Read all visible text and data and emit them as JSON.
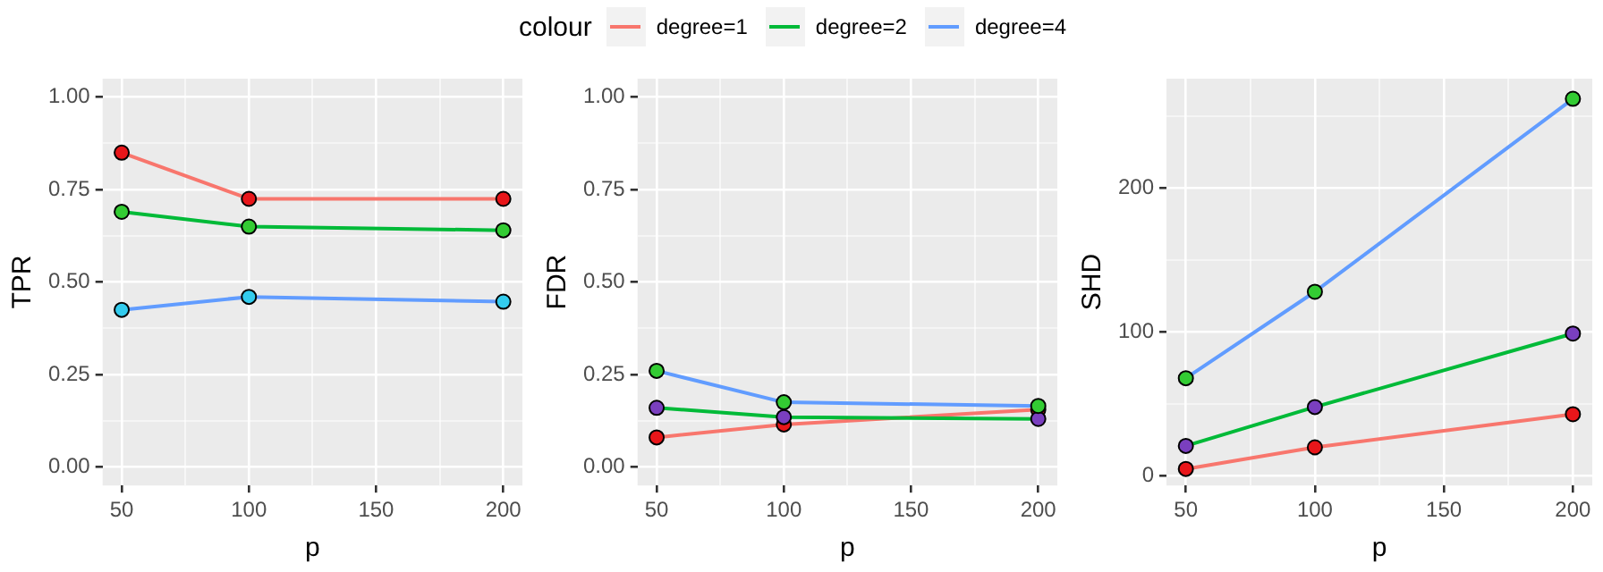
{
  "chart_data": [
    {
      "type": "line",
      "xlabel": "p",
      "ylabel": "TPR",
      "legend_title": "colour",
      "legend": "top",
      "grid": true,
      "marker": "circle",
      "line_style": "solid",
      "x": [
        50,
        100,
        200
      ],
      "xlim": [
        42.5,
        207.5
      ],
      "xticks": [
        50,
        {
          "value": 75,
          "label": null
        },
        100,
        {
          "value": 125,
          "label": null
        },
        150,
        {
          "value": 175,
          "label": null
        },
        200
      ],
      "ylim": [
        -0.05,
        1.05
      ],
      "yticks": [
        {
          "value": 0,
          "label": "0.00"
        },
        {
          "value": 0.125,
          "label": null
        },
        {
          "value": 0.25,
          "label": "0.25"
        },
        {
          "value": 0.375,
          "label": null
        },
        {
          "value": 0.5,
          "label": "0.50"
        },
        {
          "value": 0.625,
          "label": null
        },
        {
          "value": 0.75,
          "label": "0.75"
        },
        {
          "value": 0.875,
          "label": null
        },
        {
          "value": 1,
          "label": "1.00"
        }
      ],
      "series": [
        {
          "name": "degree=1",
          "color": "#f8766d",
          "colors": [
            "#e8161a",
            "#e8161a",
            "#e8161a"
          ],
          "values": [
            0.85,
            0.725,
            0.725
          ]
        },
        {
          "name": "degree=2",
          "color": "#00ba38",
          "colors": [
            "#33cc33",
            "#33cc33",
            "#33cc33"
          ],
          "values": [
            0.69,
            0.65,
            0.64
          ]
        },
        {
          "name": "degree=4",
          "color": "#619cff",
          "colors": [
            "#33ccee",
            "#33ccee",
            "#33ccee"
          ],
          "values": [
            0.425,
            0.46,
            0.447
          ]
        }
      ]
    },
    {
      "type": "line",
      "xlabel": "p",
      "ylabel": "FDR",
      "grid": true,
      "marker": "circle",
      "line_style": "solid",
      "x": [
        50,
        100,
        200
      ],
      "xlim": [
        42.5,
        207.5
      ],
      "xticks": [
        50,
        {
          "value": 75,
          "label": null
        },
        100,
        {
          "value": 125,
          "label": null
        },
        150,
        {
          "value": 175,
          "label": null
        },
        200
      ],
      "ylim": [
        -0.05,
        1.05
      ],
      "yticks": [
        {
          "value": 0,
          "label": "0.00"
        },
        {
          "value": 0.125,
          "label": null
        },
        {
          "value": 0.25,
          "label": "0.25"
        },
        {
          "value": 0.375,
          "label": null
        },
        {
          "value": 0.5,
          "label": "0.50"
        },
        {
          "value": 0.625,
          "label": null
        },
        {
          "value": 0.75,
          "label": "0.75"
        },
        {
          "value": 0.875,
          "label": null
        },
        {
          "value": 1,
          "label": "1.00"
        }
      ],
      "series": [
        {
          "color": "#f8766d",
          "colors": [
            "#e8161a",
            "#e8161a",
            "#e8161a"
          ],
          "values": [
            0.08,
            0.115,
            0.155
          ]
        },
        {
          "color": "#00ba38",
          "colors": [
            "#7a3fbf",
            "#7a3fbf",
            "#7a3fbf"
          ],
          "values": [
            0.16,
            0.135,
            0.13
          ]
        },
        {
          "color": "#619cff",
          "colors": [
            "#33cc33",
            "#33cc33",
            "#33cc33"
          ],
          "values": [
            0.26,
            0.175,
            0.165
          ]
        }
      ]
    },
    {
      "type": "line",
      "xlabel": "p",
      "ylabel": "SHD",
      "grid": true,
      "marker": "circle",
      "line_style": "solid",
      "x": [
        50,
        100,
        200
      ],
      "xlim": [
        42.5,
        207.5
      ],
      "xticks": [
        50,
        {
          "value": 75,
          "label": null
        },
        100,
        {
          "value": 125,
          "label": null
        },
        150,
        {
          "value": 175,
          "label": null
        },
        200
      ],
      "ylim": [
        -6.5,
        276
      ],
      "yticks": [
        0,
        {
          "value": 50,
          "label": null
        },
        100,
        {
          "value": 150,
          "label": null
        },
        200,
        {
          "value": 250,
          "label": null
        }
      ],
      "series": [
        {
          "color": "#f8766d",
          "colors": [
            "#e8161a",
            "#e8161a",
            "#e8161a"
          ],
          "values": [
            5,
            20,
            43
          ]
        },
        {
          "color": "#00ba38",
          "colors": [
            "#7a3fbf",
            "#7a3fbf",
            "#7a3fbf"
          ],
          "values": [
            21,
            48,
            99
          ]
        },
        {
          "color": "#619cff",
          "colors": [
            "#33cc33",
            "#33cc33",
            "#33cc33"
          ],
          "values": [
            68,
            128,
            262
          ]
        }
      ]
    }
  ]
}
